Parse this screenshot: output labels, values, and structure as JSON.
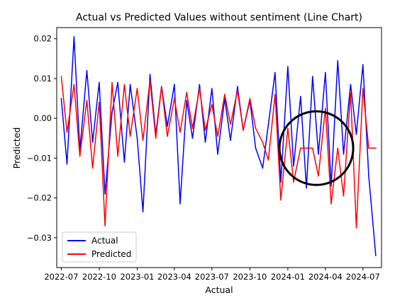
{
  "chart_data": {
    "type": "line",
    "title": "Actual vs Predicted Values without sentiment (Line Chart)",
    "xlabel": "Actual",
    "ylabel": "Predicted",
    "x_ticks": [
      "2022-07",
      "2022-10",
      "2023-01",
      "2023-04",
      "2023-07",
      "2023-10",
      "2024-01",
      "2024-04",
      "2024-07"
    ],
    "y_ticks": [
      0.02,
      0.01,
      0.0,
      -0.01,
      -0.02,
      -0.03
    ],
    "y_tick_labels": [
      "0.02",
      "0.01",
      "0.00",
      "−0.01",
      "−0.02",
      "−0.03"
    ],
    "xlim": [
      "2022-06-20",
      "2024-08-15"
    ],
    "ylim": [
      -0.0375,
      0.0228
    ],
    "grid": false,
    "legend_position": "bottom-left",
    "annotation": {
      "shape": "circle",
      "center": [
        "2024-03-10",
        -0.0075
      ],
      "color": "#000000"
    },
    "series": [
      {
        "name": "Actual",
        "color": "#0000ff",
        "x": [
          "2022-07-01",
          "2022-07-15",
          "2022-08-01",
          "2022-08-15",
          "2022-09-01",
          "2022-09-15",
          "2022-10-01",
          "2022-10-15",
          "2022-11-01",
          "2022-11-15",
          "2022-12-01",
          "2022-12-15",
          "2023-01-01",
          "2023-01-15",
          "2023-02-01",
          "2023-02-15",
          "2023-03-01",
          "2023-03-15",
          "2023-04-01",
          "2023-04-15",
          "2023-05-01",
          "2023-05-15",
          "2023-06-01",
          "2023-06-15",
          "2023-07-01",
          "2023-07-15",
          "2023-08-01",
          "2023-08-15",
          "2023-09-01",
          "2023-09-15",
          "2023-10-01",
          "2023-10-15",
          "2023-11-01",
          "2023-11-15",
          "2023-12-01",
          "2023-12-15",
          "2024-01-01",
          "2024-01-15",
          "2024-02-01",
          "2024-02-15",
          "2024-03-01",
          "2024-03-15",
          "2024-04-01",
          "2024-04-15",
          "2024-05-01",
          "2024-05-15",
          "2024-06-01",
          "2024-06-15",
          "2024-07-01",
          "2024-07-15",
          "2024-08-01"
        ],
        "values": [
          0.005,
          -0.0115,
          0.0205,
          -0.008,
          0.012,
          -0.006,
          0.009,
          -0.019,
          0.0015,
          0.009,
          -0.011,
          0.0085,
          -0.005,
          -0.0235,
          0.011,
          -0.004,
          0.008,
          -0.002,
          0.0085,
          -0.0215,
          0.0045,
          -0.005,
          0.0085,
          -0.006,
          0.0075,
          -0.009,
          0.005,
          -0.0055,
          0.008,
          -0.003,
          0.0045,
          -0.0075,
          -0.0125,
          -0.0015,
          0.0115,
          -0.016,
          0.013,
          -0.012,
          0.0055,
          -0.0175,
          0.0105,
          -0.009,
          0.0115,
          -0.017,
          0.0145,
          -0.009,
          0.0085,
          -0.004,
          0.0135,
          -0.0145,
          -0.0345
        ]
      },
      {
        "name": "Predicted",
        "color": "#ff0000",
        "x": [
          "2022-07-01",
          "2022-07-15",
          "2022-08-01",
          "2022-08-15",
          "2022-09-01",
          "2022-09-15",
          "2022-10-01",
          "2022-10-15",
          "2022-11-01",
          "2022-11-15",
          "2022-12-01",
          "2022-12-15",
          "2023-01-01",
          "2023-01-15",
          "2023-02-01",
          "2023-02-15",
          "2023-03-01",
          "2023-03-15",
          "2023-04-01",
          "2023-04-15",
          "2023-05-01",
          "2023-05-15",
          "2023-06-01",
          "2023-06-15",
          "2023-07-01",
          "2023-07-15",
          "2023-08-01",
          "2023-08-15",
          "2023-09-01",
          "2023-09-15",
          "2023-10-01",
          "2023-10-15",
          "2023-11-01",
          "2023-11-15",
          "2023-12-01",
          "2023-12-15",
          "2024-01-01",
          "2024-01-15",
          "2024-02-01",
          "2024-02-15",
          "2024-03-01",
          "2024-03-15",
          "2024-04-01",
          "2024-04-15",
          "2024-05-01",
          "2024-05-15",
          "2024-06-01",
          "2024-06-15",
          "2024-07-01",
          "2024-07-15",
          "2024-08-01"
        ],
        "values": [
          0.0105,
          -0.0035,
          0.0085,
          -0.0095,
          0.0045,
          -0.0125,
          0.004,
          -0.027,
          0.009,
          -0.0095,
          0.0085,
          -0.0045,
          0.0075,
          -0.0055,
          0.0095,
          -0.005,
          0.008,
          -0.0045,
          0.005,
          -0.0035,
          0.0065,
          -0.0025,
          0.0075,
          -0.003,
          0.0035,
          -0.0045,
          0.006,
          -0.0015,
          0.007,
          -0.003,
          0.005,
          -0.0025,
          -0.006,
          -0.0105,
          0.006,
          -0.0205,
          -0.0025,
          -0.016,
          -0.0075,
          -0.0075,
          -0.0075,
          -0.0145,
          0.0025,
          -0.0215,
          -0.0075,
          -0.0195,
          0.0065,
          -0.0275,
          0.0075,
          -0.0075,
          -0.0075
        ]
      }
    ]
  }
}
